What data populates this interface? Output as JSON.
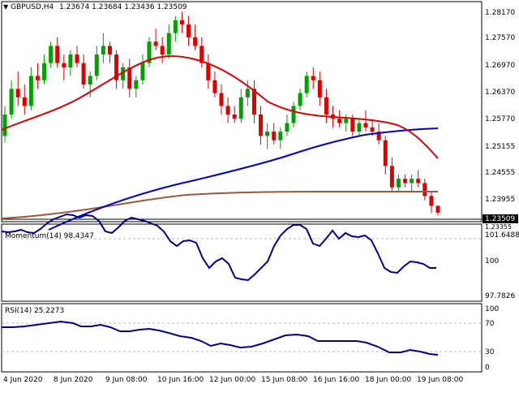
{
  "header": {
    "arrow": "▼",
    "symbol": "GBPUSD,H4",
    "ohlc": "1.23674 1.23684 1.23436 1.23509"
  },
  "price_axis": [
    "1.28170",
    "1.27570",
    "1.26970",
    "1.26370",
    "1.25770",
    "1.25155",
    "1.24555",
    "1.23955",
    "1.23355"
  ],
  "current_price": "1.23509",
  "time_axis": [
    "4 Jun 2020",
    "8 Jun 2020",
    "9 Jun 08:00",
    "10 Jun 16:00",
    "12 Jun 00:00",
    "15 Jun 08:00",
    "16 Jun 16:00",
    "18 Jun 00:00",
    "19 Jun 08:00"
  ],
  "momentum": {
    "label": "Momentum(14) 98.4347",
    "axis": [
      "101.6488",
      "100",
      "97.7826"
    ],
    "level": 100
  },
  "rsi": {
    "label": "RSI(14) 25.2273",
    "axis": [
      "100",
      "70",
      "30",
      "0"
    ],
    "levels": [
      70,
      30
    ]
  },
  "colors": {
    "bull": "#00a000",
    "bear": "#e00000",
    "ma_fast": "#e00000",
    "ma_mid": "#0000cc",
    "ma_slow": "#9c5a3c",
    "indicator": "#00008b"
  },
  "chart_data": {
    "type": "candlestick",
    "symbol": "GBPUSD",
    "timeframe": "H4",
    "ylim": [
      1.233,
      1.2832
    ],
    "candles": [
      [
        1.253,
        1.26,
        1.2515,
        1.258
      ],
      [
        1.258,
        1.266,
        1.257,
        1.264
      ],
      [
        1.264,
        1.268,
        1.26,
        1.262
      ],
      [
        1.262,
        1.265,
        1.258,
        1.26
      ],
      [
        1.26,
        1.269,
        1.259,
        1.267
      ],
      [
        1.267,
        1.27,
        1.264,
        1.266
      ],
      [
        1.266,
        1.272,
        1.265,
        1.27
      ],
      [
        1.27,
        1.275,
        1.269,
        1.274
      ],
      [
        1.274,
        1.276,
        1.269,
        1.27
      ],
      [
        1.27,
        1.272,
        1.266,
        1.269
      ],
      [
        1.269,
        1.273,
        1.267,
        1.272
      ],
      [
        1.272,
        1.274,
        1.269,
        1.27
      ],
      [
        1.27,
        1.272,
        1.264,
        1.265
      ],
      [
        1.265,
        1.268,
        1.262,
        1.267
      ],
      [
        1.267,
        1.274,
        1.266,
        1.272
      ],
      [
        1.272,
        1.277,
        1.27,
        1.274
      ],
      [
        1.274,
        1.275,
        1.27,
        1.272
      ],
      [
        1.272,
        1.273,
        1.264,
        1.266
      ],
      [
        1.266,
        1.27,
        1.264,
        1.269
      ],
      [
        1.269,
        1.271,
        1.262,
        1.264
      ],
      [
        1.264,
        1.267,
        1.262,
        1.266
      ],
      [
        1.266,
        1.272,
        1.265,
        1.27
      ],
      [
        1.27,
        1.276,
        1.269,
        1.275
      ],
      [
        1.275,
        1.278,
        1.273,
        1.274
      ],
      [
        1.274,
        1.276,
        1.27,
        1.272
      ],
      [
        1.272,
        1.279,
        1.271,
        1.277
      ],
      [
        1.277,
        1.281,
        1.275,
        1.28
      ],
      [
        1.28,
        1.282,
        1.277,
        1.279
      ],
      [
        1.279,
        1.281,
        1.274,
        1.276
      ],
      [
        1.276,
        1.279,
        1.273,
        1.274
      ],
      [
        1.274,
        1.276,
        1.269,
        1.27
      ],
      [
        1.27,
        1.272,
        1.264,
        1.266
      ],
      [
        1.266,
        1.268,
        1.262,
        1.263
      ],
      [
        1.263,
        1.265,
        1.258,
        1.26
      ],
      [
        1.26,
        1.262,
        1.256,
        1.258
      ],
      [
        1.258,
        1.26,
        1.256,
        1.257
      ],
      [
        1.257,
        1.264,
        1.256,
        1.262
      ],
      [
        1.262,
        1.266,
        1.26,
        1.264
      ],
      [
        1.264,
        1.266,
        1.256,
        1.258
      ],
      [
        1.258,
        1.26,
        1.251,
        1.253
      ],
      [
        1.253,
        1.256,
        1.25,
        1.254
      ],
      [
        1.254,
        1.256,
        1.251,
        1.252
      ],
      [
        1.252,
        1.255,
        1.25,
        1.254
      ],
      [
        1.254,
        1.258,
        1.253,
        1.256
      ],
      [
        1.256,
        1.261,
        1.255,
        1.26
      ],
      [
        1.26,
        1.264,
        1.259,
        1.263
      ],
      [
        1.263,
        1.268,
        1.262,
        1.267
      ],
      [
        1.267,
        1.269,
        1.264,
        1.266
      ],
      [
        1.266,
        1.268,
        1.26,
        1.262
      ],
      [
        1.262,
        1.264,
        1.256,
        1.258
      ],
      [
        1.258,
        1.26,
        1.255,
        1.257
      ],
      [
        1.257,
        1.259,
        1.255,
        1.256
      ],
      [
        1.256,
        1.258,
        1.254,
        1.257
      ],
      [
        1.257,
        1.258,
        1.253,
        1.254
      ],
      [
        1.254,
        1.257,
        1.253,
        1.256
      ],
      [
        1.256,
        1.259,
        1.254,
        1.255
      ],
      [
        1.255,
        1.257,
        1.253,
        1.254
      ],
      [
        1.254,
        1.256,
        1.251,
        1.252
      ],
      [
        1.252,
        1.253,
        1.244,
        1.246
      ],
      [
        1.246,
        1.248,
        1.24,
        1.241
      ],
      [
        1.241,
        1.244,
        1.24,
        1.243
      ],
      [
        1.243,
        1.244,
        1.241,
        1.242
      ],
      [
        1.242,
        1.244,
        1.24,
        1.243
      ],
      [
        1.243,
        1.245,
        1.241,
        1.242
      ],
      [
        1.242,
        1.243,
        1.238,
        1.239
      ],
      [
        1.239,
        1.24,
        1.235,
        1.2367
      ],
      [
        1.2367,
        1.2368,
        1.2344,
        1.2351
      ]
    ]
  }
}
